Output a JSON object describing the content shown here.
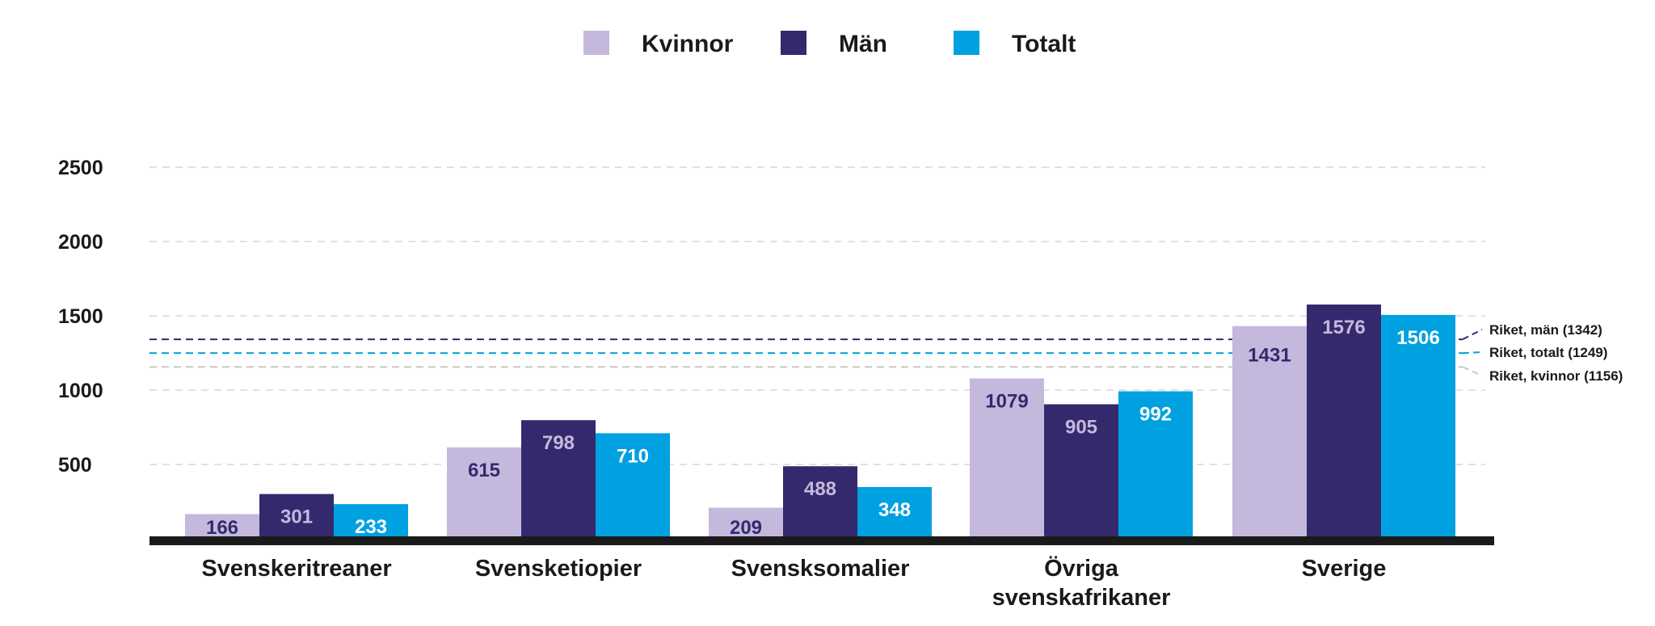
{
  "chart_data": {
    "type": "bar",
    "categories": [
      [
        "Svenskeritreaner"
      ],
      [
        "Svensketiopier"
      ],
      [
        "Svensksomalier"
      ],
      [
        "Övriga",
        "svenskafrikaner"
      ],
      [
        "Sverige"
      ]
    ],
    "series": [
      {
        "name": "Kvinnor",
        "color": "#c4b9dc",
        "values": [
          166,
          615,
          209,
          1079,
          1431
        ],
        "labels": [
          "166",
          "615",
          "209",
          "1079",
          "1431"
        ]
      },
      {
        "name": "Män",
        "color": "#35296e",
        "values": [
          301,
          798,
          488,
          905,
          1576
        ],
        "labels": [
          "301",
          "798",
          "488",
          "905",
          "1576"
        ]
      },
      {
        "name": "Totalt",
        "color": "#00a1e0",
        "values": [
          233,
          710,
          348,
          992,
          1506
        ],
        "labels": [
          "233",
          "710",
          "348",
          "992",
          "1506"
        ]
      }
    ],
    "yticks": [
      500,
      1000,
      1500,
      2000,
      2500
    ],
    "ytick_labels": [
      "500",
      "1000",
      "1500",
      "2000",
      "2500"
    ],
    "ylim": [
      0,
      2500
    ],
    "grid": true,
    "legend": "top",
    "reference_lines": [
      {
        "label": "Riket, män (1342)",
        "value": 1342,
        "color": "#35296e"
      },
      {
        "label": "Riket, totalt (1249)",
        "value": 1249,
        "color": "#00a1e0"
      },
      {
        "label": "Riket, kvinnor (1156)",
        "value": 1156,
        "color": "#c8c8c8"
      }
    ],
    "title": "",
    "xlabel": "",
    "ylabel": ""
  }
}
